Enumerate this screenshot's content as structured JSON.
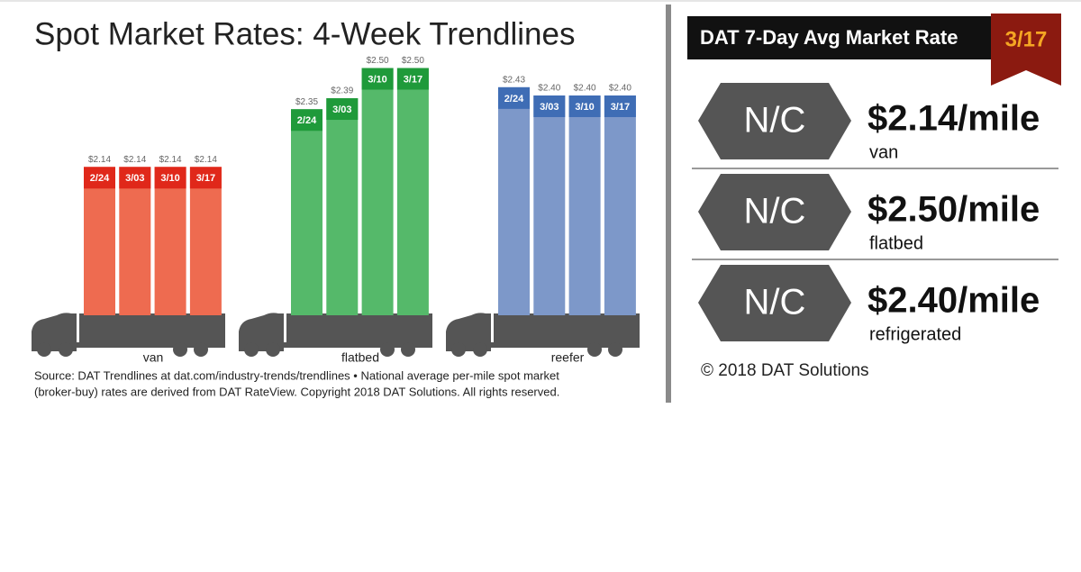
{
  "chart_data": {
    "type": "bar",
    "title": "Spot Market Rates: 4-Week Trendlines",
    "categories": [
      "2/24",
      "3/03",
      "3/10",
      "3/17"
    ],
    "series": [
      {
        "name": "van",
        "color": "#ee6b50",
        "label_color": "#e0281a",
        "values": [
          2.14,
          2.14,
          2.14,
          2.14
        ],
        "value_labels": [
          "$2.14",
          "$2.14",
          "$2.14",
          "$2.14"
        ]
      },
      {
        "name": "flatbed",
        "color": "#55b96a",
        "label_color": "#1f9a3a",
        "values": [
          2.35,
          2.39,
          2.5,
          2.5
        ],
        "value_labels": [
          "$2.35",
          "$2.39",
          "$2.50",
          "$2.50"
        ]
      },
      {
        "name": "reefer",
        "color": "#7d98c9",
        "label_color": "#3f6db5",
        "values": [
          2.43,
          2.4,
          2.4,
          2.4
        ],
        "value_labels": [
          "$2.43",
          "$2.40",
          "$2.40",
          "$2.40"
        ]
      }
    ],
    "ylim": [
      1.6,
      2.6
    ],
    "source": [
      "Source: DAT Trendlines at dat.com/industry-trends/trendlines • National average per-mile spot market",
      "(broker-buy) rates are derived from DAT RateView. Copyright 2018 DAT Solutions. All rights reserved."
    ]
  },
  "panel": {
    "title": "DAT 7-Day Avg Market Rate",
    "date": "3/17",
    "rows": [
      {
        "change": "N/C",
        "rate": "$2.14/mile",
        "equipment": "van"
      },
      {
        "change": "N/C",
        "rate": "$2.50/mile",
        "equipment": "flatbed"
      },
      {
        "change": "N/C",
        "rate": "$2.40/mile",
        "equipment": "refrigerated"
      }
    ],
    "copyright": "© 2018 DAT Solutions"
  }
}
